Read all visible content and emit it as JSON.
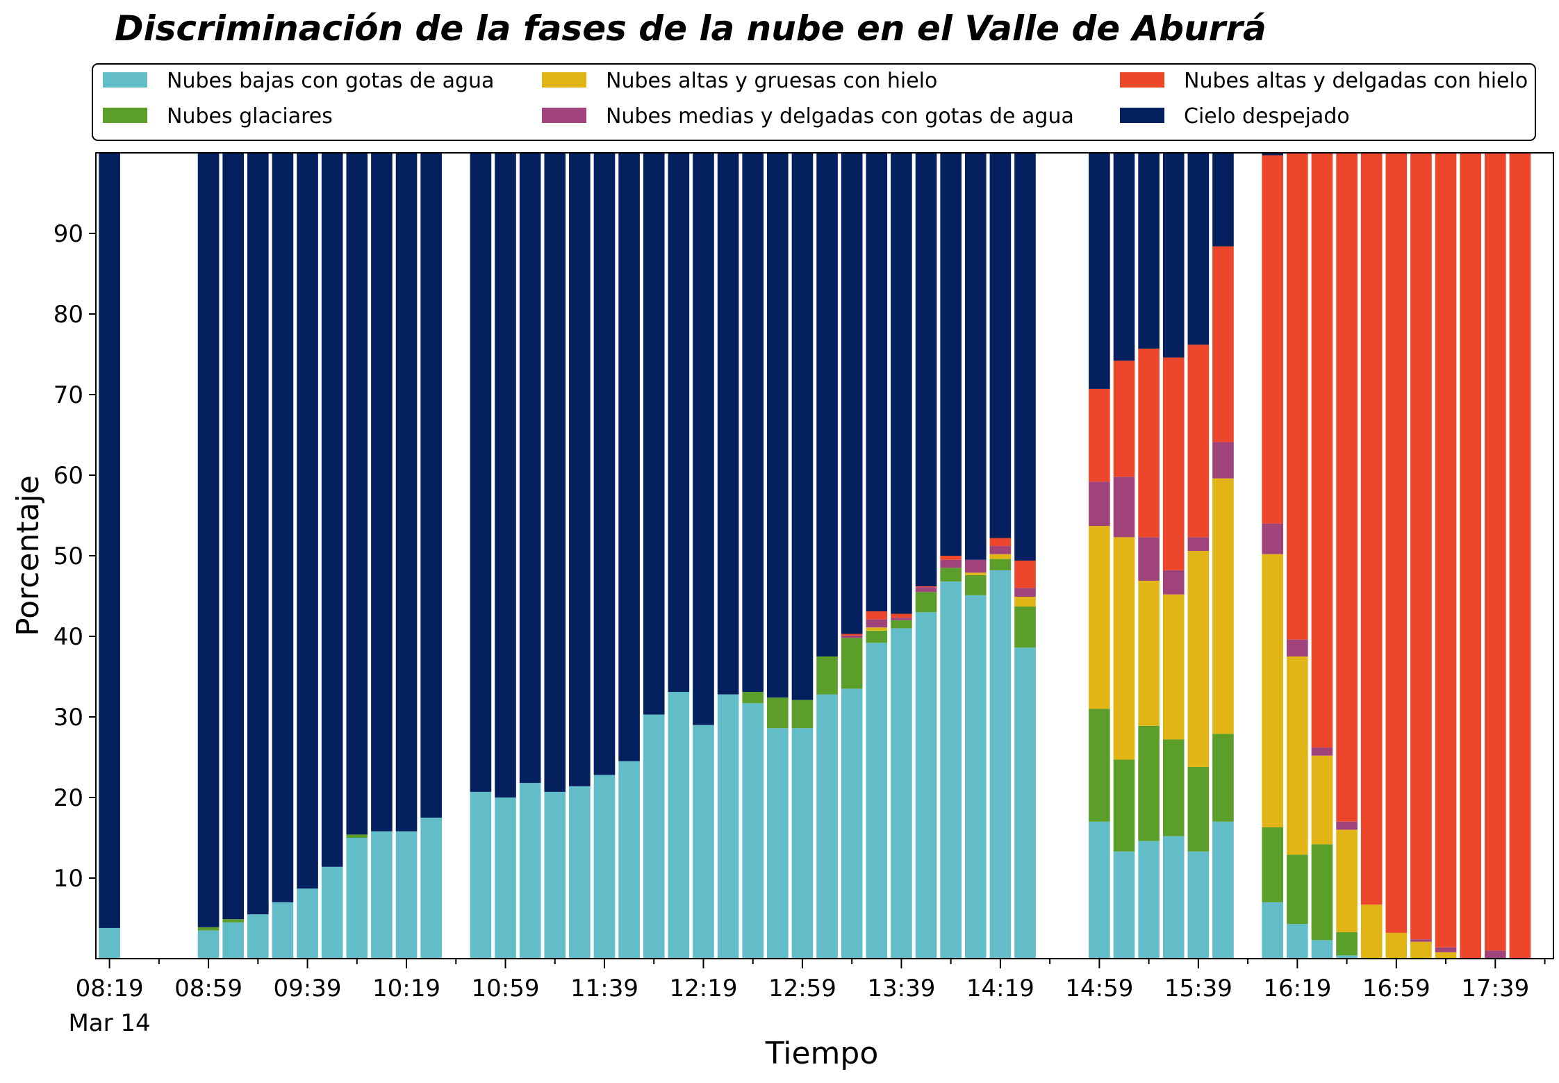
{
  "chart_data": {
    "type": "bar",
    "stacked": true,
    "title": "Discriminación de la fases de la nube en el Valle de Aburrá",
    "xlabel": "Tiempo",
    "ylabel": "Porcentaje",
    "ylim": [
      0,
      100
    ],
    "yticks": [
      10,
      20,
      30,
      40,
      50,
      60,
      70,
      80,
      90
    ],
    "legend_position": "top",
    "legend_columns": 3,
    "x_start": "08:19",
    "x_end": "17:59",
    "slot_minutes": 10,
    "xticks": [
      {
        "label": "08:19",
        "sublabel": "Mar 14"
      },
      {
        "label": "08:59",
        "sublabel": ""
      },
      {
        "label": "09:39",
        "sublabel": ""
      },
      {
        "label": "10:19",
        "sublabel": ""
      },
      {
        "label": "10:59",
        "sublabel": ""
      },
      {
        "label": "11:39",
        "sublabel": ""
      },
      {
        "label": "12:19",
        "sublabel": ""
      },
      {
        "label": "12:59",
        "sublabel": ""
      },
      {
        "label": "13:39",
        "sublabel": ""
      },
      {
        "label": "14:19",
        "sublabel": ""
      },
      {
        "label": "14:59",
        "sublabel": ""
      },
      {
        "label": "15:39",
        "sublabel": ""
      },
      {
        "label": "16:19",
        "sublabel": ""
      },
      {
        "label": "16:59",
        "sublabel": ""
      },
      {
        "label": "17:39",
        "sublabel": ""
      }
    ],
    "series": [
      {
        "name": "Nubes bajas con gotas de agua",
        "color": "#62BDC9"
      },
      {
        "name": "Nubes glaciares",
        "color": "#5B9E2A"
      },
      {
        "name": "Nubes altas y gruesas con hielo",
        "color": "#E2B516"
      },
      {
        "name": "Nubes medias y delgadas con gotas de agua",
        "color": "#A0437A"
      },
      {
        "name": "Nubes altas y delgadas con hielo",
        "color": "#EC472A"
      },
      {
        "name": "Cielo despejado",
        "color": "#04205F"
      }
    ],
    "bars": [
      {
        "time": "08:19",
        "values": [
          3.8,
          0,
          0,
          0,
          0,
          96.2
        ]
      },
      {
        "time": "08:59",
        "values": [
          3.5,
          0.4,
          0,
          0,
          0,
          96.1
        ]
      },
      {
        "time": "09:09",
        "values": [
          4.5,
          0.4,
          0,
          0,
          0,
          95.1
        ]
      },
      {
        "time": "09:19",
        "values": [
          5.5,
          0,
          0,
          0,
          0,
          94.5
        ]
      },
      {
        "time": "09:29",
        "values": [
          7.0,
          0,
          0,
          0,
          0,
          93.0
        ]
      },
      {
        "time": "09:39",
        "values": [
          8.7,
          0,
          0,
          0,
          0,
          91.3
        ]
      },
      {
        "time": "09:49",
        "values": [
          11.4,
          0,
          0,
          0,
          0,
          88.6
        ]
      },
      {
        "time": "09:59",
        "values": [
          15.0,
          0.4,
          0,
          0,
          0,
          84.6
        ]
      },
      {
        "time": "10:09",
        "values": [
          15.8,
          0,
          0,
          0,
          0,
          84.2
        ]
      },
      {
        "time": "10:19",
        "values": [
          15.8,
          0,
          0,
          0,
          0,
          84.2
        ]
      },
      {
        "time": "10:29",
        "values": [
          17.5,
          0,
          0,
          0,
          0,
          82.5
        ]
      },
      {
        "time": "10:49",
        "values": [
          20.7,
          0,
          0,
          0,
          0,
          79.3
        ]
      },
      {
        "time": "10:59",
        "values": [
          20.0,
          0,
          0,
          0,
          0,
          80.0
        ]
      },
      {
        "time": "11:09",
        "values": [
          21.8,
          0,
          0,
          0,
          0,
          78.2
        ]
      },
      {
        "time": "11:19",
        "values": [
          20.7,
          0,
          0,
          0,
          0,
          79.3
        ]
      },
      {
        "time": "11:29",
        "values": [
          21.4,
          0,
          0,
          0,
          0,
          78.6
        ]
      },
      {
        "time": "11:39",
        "values": [
          22.8,
          0,
          0,
          0,
          0,
          77.2
        ]
      },
      {
        "time": "11:49",
        "values": [
          24.5,
          0,
          0,
          0,
          0,
          75.5
        ]
      },
      {
        "time": "11:59",
        "values": [
          30.3,
          0,
          0,
          0,
          0,
          69.7
        ]
      },
      {
        "time": "12:09",
        "values": [
          33.1,
          0,
          0,
          0,
          0,
          66.9
        ]
      },
      {
        "time": "12:19",
        "values": [
          29.0,
          0,
          0,
          0,
          0,
          71.0
        ]
      },
      {
        "time": "12:29",
        "values": [
          32.8,
          0,
          0,
          0,
          0,
          67.2
        ]
      },
      {
        "time": "12:39",
        "values": [
          31.7,
          1.4,
          0,
          0,
          0,
          66.9
        ]
      },
      {
        "time": "12:49",
        "values": [
          28.6,
          3.8,
          0,
          0,
          0,
          67.6
        ]
      },
      {
        "time": "12:59",
        "values": [
          28.6,
          3.5,
          0,
          0,
          0,
          67.9
        ]
      },
      {
        "time": "13:09",
        "values": [
          32.8,
          4.7,
          0,
          0,
          0,
          62.5
        ]
      },
      {
        "time": "13:19",
        "values": [
          33.5,
          6.3,
          0,
          0.3,
          0.2,
          59.7
        ]
      },
      {
        "time": "13:29",
        "values": [
          39.2,
          1.5,
          0.4,
          1.0,
          1.0,
          56.9
        ]
      },
      {
        "time": "13:39",
        "values": [
          41.0,
          1.0,
          0,
          0.3,
          0.5,
          57.2
        ]
      },
      {
        "time": "13:49",
        "values": [
          43.0,
          2.5,
          0,
          0.6,
          0.1,
          53.8
        ]
      },
      {
        "time": "13:59",
        "values": [
          46.8,
          1.7,
          0,
          1.0,
          0.5,
          50.0
        ]
      },
      {
        "time": "14:09",
        "values": [
          45.1,
          2.5,
          0.3,
          1.6,
          0,
          50.5
        ]
      },
      {
        "time": "14:19",
        "values": [
          48.2,
          1.4,
          0.6,
          1.0,
          1.0,
          47.8
        ]
      },
      {
        "time": "14:29",
        "values": [
          38.6,
          5.1,
          1.2,
          1.1,
          3.4,
          50.6
        ]
      },
      {
        "time": "14:59",
        "values": [
          17.0,
          14.0,
          22.7,
          5.5,
          11.5,
          29.3
        ]
      },
      {
        "time": "15:09",
        "values": [
          13.3,
          11.4,
          27.6,
          7.5,
          14.4,
          25.8
        ]
      },
      {
        "time": "15:19",
        "values": [
          14.6,
          14.3,
          18.0,
          5.4,
          23.4,
          24.3
        ]
      },
      {
        "time": "15:29",
        "values": [
          15.2,
          12.0,
          18.0,
          3.0,
          26.4,
          25.4
        ]
      },
      {
        "time": "15:39",
        "values": [
          13.3,
          10.5,
          26.8,
          1.7,
          23.9,
          23.8
        ]
      },
      {
        "time": "15:49",
        "values": [
          17.0,
          10.9,
          31.7,
          4.5,
          24.3,
          11.6
        ]
      },
      {
        "time": "16:09",
        "values": [
          7.0,
          9.3,
          33.9,
          3.8,
          45.7,
          0.3
        ]
      },
      {
        "time": "16:19",
        "values": [
          4.3,
          8.6,
          24.6,
          2.1,
          60.4,
          0
        ]
      },
      {
        "time": "16:29",
        "values": [
          2.3,
          11.9,
          11.0,
          1.0,
          73.8,
          0
        ]
      },
      {
        "time": "16:39",
        "values": [
          0.4,
          2.9,
          12.7,
          1.0,
          83.0,
          0
        ]
      },
      {
        "time": "16:49",
        "values": [
          0,
          0,
          6.7,
          0,
          93.3,
          0
        ]
      },
      {
        "time": "16:59",
        "values": [
          0,
          0,
          3.2,
          0,
          96.8,
          0
        ]
      },
      {
        "time": "17:09",
        "values": [
          0,
          0,
          2.1,
          0.3,
          97.6,
          0
        ]
      },
      {
        "time": "17:19",
        "values": [
          0,
          0,
          0.8,
          0.6,
          98.6,
          0
        ]
      },
      {
        "time": "17:29",
        "values": [
          0,
          0,
          0,
          0,
          100.0,
          0
        ]
      },
      {
        "time": "17:39",
        "values": [
          0,
          0,
          0,
          1.0,
          99.0,
          0
        ]
      },
      {
        "time": "17:49",
        "values": [
          0,
          0,
          0,
          0,
          100.0,
          0
        ]
      }
    ]
  }
}
